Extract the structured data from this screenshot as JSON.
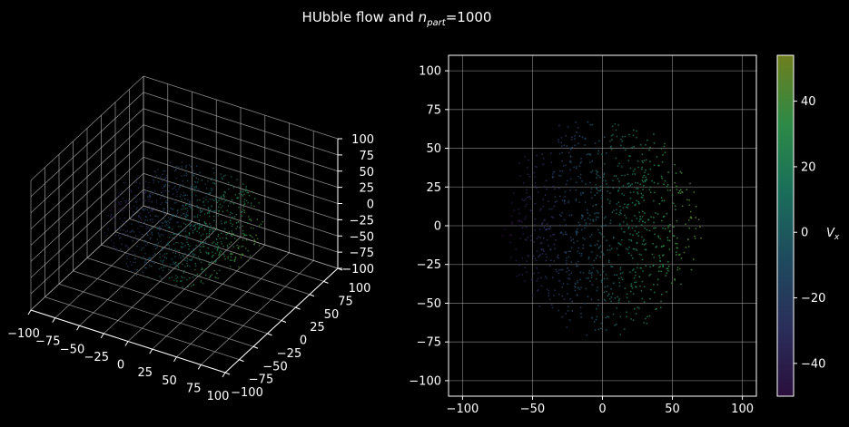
{
  "figure": {
    "title_main": "HUbble flow and ",
    "title_sub_var": "n",
    "title_sub": "part",
    "title_tail": "=1000"
  },
  "colors": {
    "background": "#000000",
    "axes": "#ffffff",
    "grid": "#b0b0b0"
  },
  "chart_data": [
    {
      "type": "scatter-3d",
      "panel": "left",
      "x_ticks": [
        -100,
        -75,
        -50,
        -25,
        0,
        25,
        50,
        75,
        100
      ],
      "y_ticks": [
        -100,
        -75,
        -50,
        -25,
        0,
        25,
        50,
        75,
        100
      ],
      "z_ticks": [
        -100,
        -75,
        -50,
        -25,
        0,
        25,
        50,
        75,
        100
      ],
      "xlim": [
        -100,
        100
      ],
      "ylim": [
        -100,
        100
      ],
      "zlim": [
        -100,
        100
      ],
      "n_points": 1000,
      "color_by": "v_x",
      "grid": true
    },
    {
      "type": "scatter",
      "panel": "right",
      "x_ticks": [
        -100,
        -50,
        0,
        50,
        100
      ],
      "y_ticks": [
        -100,
        -75,
        -50,
        -25,
        0,
        25,
        50,
        75,
        100
      ],
      "xlim": [
        -110,
        110
      ],
      "ylim": [
        -110,
        110
      ],
      "distribution": "uniform disc, radius ~72",
      "n_points": 1000,
      "color_by": "v_x",
      "grid": true,
      "colorbar": {
        "label_var": "V",
        "label_sub": "x",
        "ticks": [
          -40,
          -20,
          0,
          20,
          40
        ],
        "range": [
          -50,
          54
        ],
        "colormap": [
          "#2a0f3d",
          "#2a2e5a",
          "#1e4a5e",
          "#1a6e5a",
          "#2d8a46",
          "#6e7e1e"
        ]
      }
    }
  ]
}
